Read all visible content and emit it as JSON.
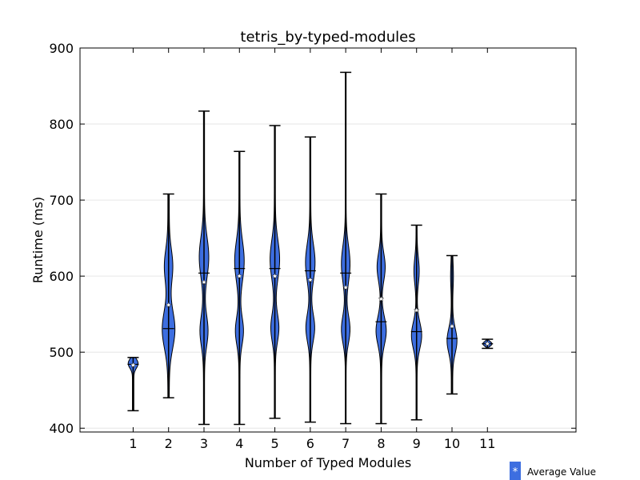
{
  "chart_data": {
    "type": "violin",
    "title": "tetris_by-typed-modules",
    "xlabel": "Number of Typed Modules",
    "ylabel": "Runtime (ms)",
    "ylim": [
      395,
      900
    ],
    "xlim": [
      -0.5,
      13.5
    ],
    "yticks": [
      400,
      500,
      600,
      700,
      800,
      900
    ],
    "categories": [
      "1",
      "2",
      "3",
      "4",
      "5",
      "6",
      "7",
      "8",
      "9",
      "10",
      "11"
    ],
    "grid": "horizontal",
    "color": "#3d6ee0",
    "legend": {
      "label": "Average Value",
      "symbol": "*",
      "placement": "bottom-right"
    },
    "series": [
      {
        "x": 1,
        "min": 423,
        "max": 493,
        "median": 484,
        "mean": 483,
        "modes": [
          {
            "c": 485,
            "s": 6,
            "w": 0.12
          }
        ],
        "tail": 0.02
      },
      {
        "x": 2,
        "min": 440,
        "max": 708,
        "median": 531,
        "mean": 562,
        "modes": [
          {
            "c": 530,
            "s": 25,
            "w": 0.16
          },
          {
            "c": 613,
            "s": 22,
            "w": 0.1
          }
        ],
        "tail": 0.02
      },
      {
        "x": 3,
        "min": 405,
        "max": 817,
        "median": 604,
        "mean": 592,
        "modes": [
          {
            "c": 528,
            "s": 20,
            "w": 0.1
          },
          {
            "c": 625,
            "s": 26,
            "w": 0.12
          }
        ],
        "tail": 0.015
      },
      {
        "x": 4,
        "min": 405,
        "max": 764,
        "median": 610,
        "mean": 600,
        "modes": [
          {
            "c": 528,
            "s": 18,
            "w": 0.1
          },
          {
            "c": 620,
            "s": 26,
            "w": 0.12
          }
        ],
        "tail": 0.015
      },
      {
        "x": 5,
        "min": 413,
        "max": 798,
        "median": 610,
        "mean": 600,
        "modes": [
          {
            "c": 532,
            "s": 18,
            "w": 0.1
          },
          {
            "c": 622,
            "s": 25,
            "w": 0.12
          }
        ],
        "tail": 0.015
      },
      {
        "x": 6,
        "min": 408,
        "max": 783,
        "median": 607,
        "mean": 595,
        "modes": [
          {
            "c": 532,
            "s": 18,
            "w": 0.11
          },
          {
            "c": 618,
            "s": 24,
            "w": 0.12
          }
        ],
        "tail": 0.015
      },
      {
        "x": 7,
        "min": 406,
        "max": 868,
        "median": 604,
        "mean": 585,
        "modes": [
          {
            "c": 530,
            "s": 18,
            "w": 0.11
          },
          {
            "c": 616,
            "s": 24,
            "w": 0.11
          }
        ],
        "tail": 0.012
      },
      {
        "x": 8,
        "min": 406,
        "max": 708,
        "median": 540,
        "mean": 570,
        "modes": [
          {
            "c": 528,
            "s": 18,
            "w": 0.13
          },
          {
            "c": 612,
            "s": 18,
            "w": 0.1
          }
        ],
        "tail": 0.015
      },
      {
        "x": 9,
        "min": 411,
        "max": 667,
        "median": 527,
        "mean": 555,
        "modes": [
          {
            "c": 522,
            "s": 17,
            "w": 0.13
          },
          {
            "c": 607,
            "s": 17,
            "w": 0.06
          }
        ],
        "tail": 0.015
      },
      {
        "x": 10,
        "min": 445,
        "max": 627,
        "median": 518,
        "mean": 534,
        "modes": [
          {
            "c": 515,
            "s": 16,
            "w": 0.12
          },
          {
            "c": 600,
            "s": 15,
            "w": 0.02
          }
        ],
        "tail": 0.02
      },
      {
        "x": 11,
        "min": 505,
        "max": 517,
        "median": 511,
        "mean": 511,
        "modes": [
          {
            "c": 511,
            "s": 3,
            "w": 0.13
          }
        ],
        "tail": 0.0
      }
    ]
  }
}
